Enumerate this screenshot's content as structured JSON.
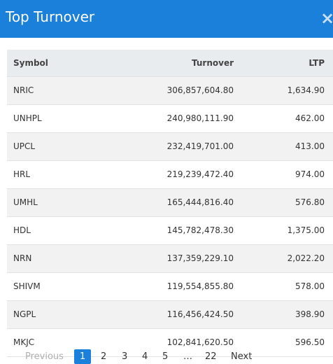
{
  "header": {
    "title": "Top Turnover",
    "close_symbol": "×"
  },
  "table": {
    "columns": [
      "Symbol",
      "Turnover",
      "LTP"
    ],
    "rows": [
      [
        "NRIC",
        "306,857,604.80",
        "1,634.90"
      ],
      [
        "UNHPL",
        "240,980,111.90",
        "462.00"
      ],
      [
        "UPCL",
        "232,419,701.00",
        "413.00"
      ],
      [
        "HRL",
        "219,239,472.40",
        "974.00"
      ],
      [
        "UMHL",
        "165,444,816.40",
        "576.80"
      ],
      [
        "HDL",
        "145,782,478.30",
        "1,375.00"
      ],
      [
        "NRN",
        "137,359,229.10",
        "2,022.20"
      ],
      [
        "SHIVM",
        "119,554,855.80",
        "578.00"
      ],
      [
        "NGPL",
        "116,456,424.50",
        "398.90"
      ],
      [
        "MKJC",
        "102,841,620.50",
        "596.50"
      ]
    ]
  },
  "pagination": {
    "previous": "Previous",
    "pages": [
      "1",
      "2",
      "3",
      "4",
      "5"
    ],
    "ellipsis": "…",
    "last": "22",
    "next": "Next",
    "current": "1"
  },
  "colors": {
    "accent": "#1a80d9"
  }
}
